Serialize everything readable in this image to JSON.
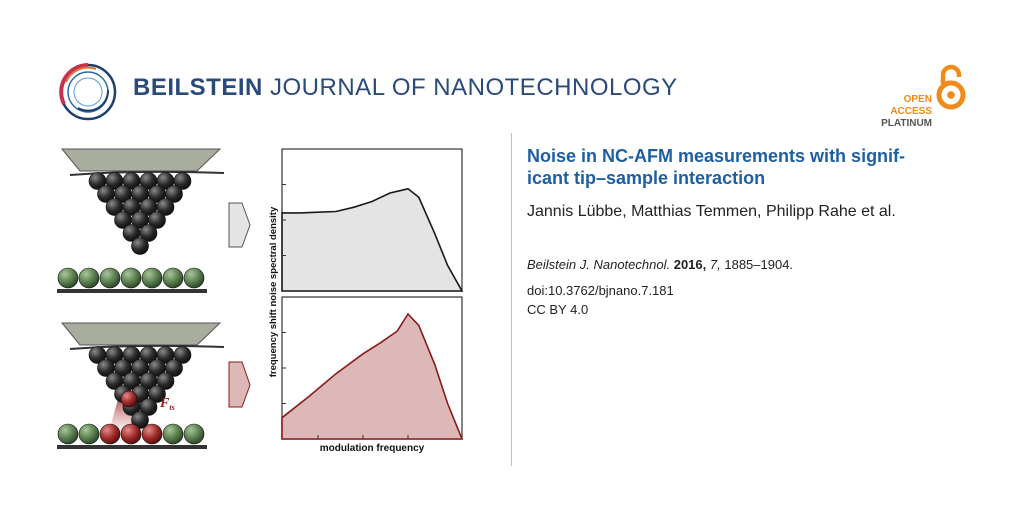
{
  "header": {
    "journal_bold": "BEILSTEIN",
    "journal_rest": "JOURNAL OF NANOTECHNOLOGY",
    "open_access": [
      "OPEN",
      "ACCESS",
      "PLATINUM"
    ]
  },
  "article": {
    "title": "Noise in NC-AFM measurements with signif-icant tip–sample interaction",
    "title_line1": "Noise in NC-AFM measurements with signif-",
    "title_line2": "icant tip–sample interaction",
    "authors": "Jannis Lübbe, Matthias Temmen, Philipp Rahe et al.",
    "citation_journal": "Beilstein J. Nanotechnol.",
    "citation_year": "2016,",
    "citation_volume": "7,",
    "citation_pages": "1885–1904.",
    "doi": "doi:10.3762/bjnano.7.181",
    "license": "CC BY 4.0"
  },
  "figure": {
    "ylabel": "frequency shift noise spectral density",
    "xlabel": "modulation frequency",
    "force_label": "F",
    "force_sub": "ts",
    "colors": {
      "top_fill": "#e4e4e4",
      "top_line": "#1a1a1a",
      "bottom_fill": "#dcb8b8",
      "bottom_line": "#8b1a1a",
      "sphere_green": "#5a7f4f",
      "sphere_red": "#a02a2a",
      "sphere_dark": "#2a2a2a",
      "cantilever": "#a8ad9e"
    },
    "chart_data": [
      {
        "type": "area",
        "x_scale": "log",
        "description_curve": "flat plateau, broad hump, steep roll-off",
        "x": [
          0,
          0.1,
          0.2,
          0.3,
          0.4,
          0.5,
          0.6,
          0.7,
          0.76,
          0.85,
          0.92,
          1.0
        ],
        "y": [
          0.55,
          0.55,
          0.555,
          0.56,
          0.59,
          0.63,
          0.69,
          0.72,
          0.66,
          0.4,
          0.18,
          0.0
        ]
      },
      {
        "type": "area",
        "x_scale": "log",
        "description_curve": "rising, sharp peak, steep fall",
        "x": [
          0,
          0.15,
          0.3,
          0.45,
          0.55,
          0.64,
          0.7,
          0.76,
          0.85,
          0.92,
          1.0
        ],
        "y": [
          0.15,
          0.3,
          0.46,
          0.6,
          0.68,
          0.76,
          0.88,
          0.8,
          0.52,
          0.25,
          0.0
        ]
      }
    ]
  }
}
